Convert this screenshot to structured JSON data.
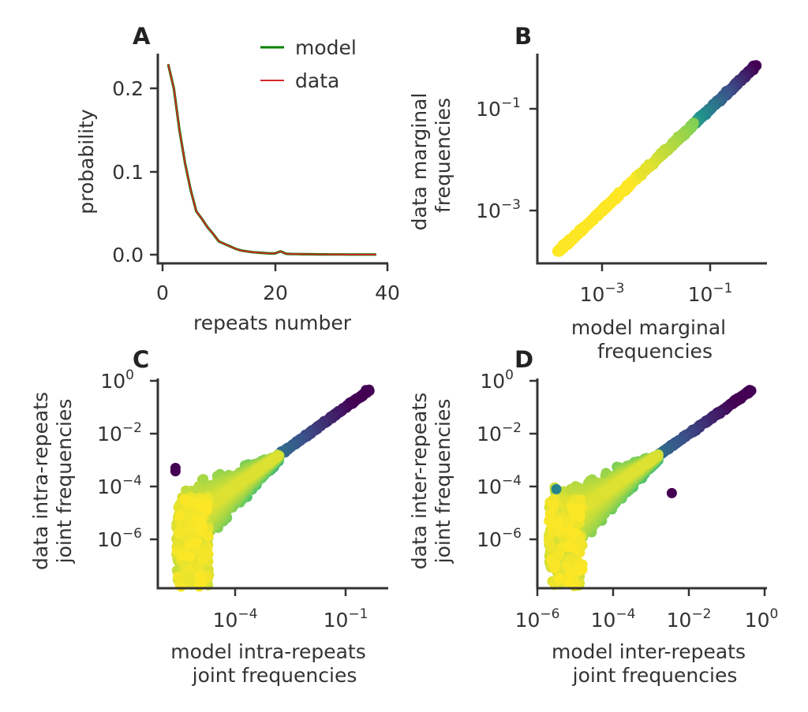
{
  "chart_data": [
    {
      "id": "A",
      "panel_label": "A",
      "type": "line",
      "xlabel": "repeats number",
      "ylabel": "probability",
      "xlim": [
        -1,
        40
      ],
      "ylim": [
        -0.01,
        0.24
      ],
      "xticks": [
        0,
        20,
        40
      ],
      "xtick_labels": [
        "0",
        "20",
        "40"
      ],
      "yticks": [
        0.0,
        0.1,
        0.2
      ],
      "ytick_labels": [
        "0.0",
        "0.1",
        "0.2"
      ],
      "legend": {
        "placement": "top-right",
        "entries": [
          "model",
          "data"
        ]
      },
      "series": [
        {
          "name": "model",
          "color": "#008000",
          "x": [
            1,
            2,
            3,
            4,
            5,
            6,
            7,
            8,
            9,
            10,
            11,
            12,
            13,
            14,
            15,
            16,
            17,
            18,
            19,
            20,
            21,
            22,
            23,
            24,
            25,
            26,
            27,
            28,
            29,
            30,
            31,
            32,
            33,
            34,
            35,
            36,
            37,
            38
          ],
          "values": [
            0.229,
            0.2,
            0.15,
            0.11,
            0.078,
            0.052,
            0.043,
            0.033,
            0.025,
            0.016,
            0.013,
            0.01,
            0.007,
            0.005,
            0.004,
            0.003,
            0.0025,
            0.002,
            0.0015,
            0.0015,
            0.004,
            0.001,
            0.0008,
            0.0008,
            0.0006,
            0.0006,
            0.0005,
            0.0004,
            0.0004,
            0.0003,
            0.0003,
            0.0003,
            0.0002,
            0.0002,
            0.0002,
            0.0002,
            0.0002,
            0.0002
          ]
        },
        {
          "name": "data",
          "color": "#d62728",
          "x": [
            1,
            2,
            3,
            4,
            5,
            6,
            7,
            8,
            9,
            10,
            11,
            12,
            13,
            14,
            15,
            16,
            17,
            18,
            19,
            20,
            21,
            22,
            23,
            24,
            25,
            26,
            27,
            28,
            29,
            30,
            31,
            32,
            33,
            34,
            35,
            36,
            37,
            38
          ],
          "values": [
            0.229,
            0.2,
            0.15,
            0.11,
            0.078,
            0.052,
            0.043,
            0.033,
            0.025,
            0.016,
            0.013,
            0.01,
            0.007,
            0.005,
            0.004,
            0.003,
            0.0025,
            0.002,
            0.0015,
            0.0015,
            0.004,
            0.001,
            0.0008,
            0.0008,
            0.0006,
            0.0006,
            0.0005,
            0.0004,
            0.0004,
            0.0003,
            0.0003,
            0.0003,
            0.0002,
            0.0002,
            0.0002,
            0.0002,
            0.0002,
            0.0002
          ]
        }
      ]
    },
    {
      "id": "B",
      "panel_label": "B",
      "type": "scatter",
      "xscale": "log",
      "yscale": "log",
      "xlabel": "model marginal frequencies",
      "ylabel": "data marginal frequencies",
      "xlim": [
        8e-05,
        0.9
      ],
      "ylim": [
        0.00012,
        1.2
      ],
      "xticks": [
        0.001,
        0.1
      ],
      "yticks": [
        0.001,
        0.1
      ],
      "colormap": [
        "#440154",
        "#3b528b",
        "#21918c",
        "#5ec962",
        "#fde725"
      ],
      "points_description": "dense diagonal band of points along y = x from 1.5e-4 to 0.7, colored by density (viridis)"
    },
    {
      "id": "C",
      "panel_label": "C",
      "type": "scatter",
      "xscale": "log",
      "yscale": "log",
      "xlabel": "model intra-repeats joint frequencies",
      "ylabel": "data intra-repeats joint frequencies",
      "xlim": [
        1.3e-06,
        0.6
      ],
      "ylim": [
        1e-08,
        1.2
      ],
      "xticks": [
        0.0001,
        0.1
      ],
      "yticks": [
        1e-06,
        0.0001,
        0.01,
        1
      ],
      "colormap": [
        "#440154",
        "#3b528b",
        "#21918c",
        "#5ec962",
        "#fde725"
      ],
      "points_description": "diagonal band widening toward low frequencies, outliers near (2.5e-6, 3.5e-4) and (2.5e-6, 5e-4)"
    },
    {
      "id": "D",
      "panel_label": "D",
      "type": "scatter",
      "xscale": "log",
      "yscale": "log",
      "xlabel": "model inter-repeats joint frequencies",
      "ylabel": "data inter-repeats joint frequencies",
      "xlim": [
        1e-06,
        1.0
      ],
      "ylim": [
        1e-08,
        1.2
      ],
      "xticks": [
        1e-06,
        0.0001,
        0.01,
        1
      ],
      "yticks": [
        1e-06,
        0.0001,
        0.01,
        1
      ],
      "colormap": [
        "#440154",
        "#3b528b",
        "#21918c",
        "#5ec962",
        "#fde725"
      ],
      "points_description": "diagonal band widening toward low frequencies, outlier near (0.0036, 6e-5)"
    }
  ]
}
